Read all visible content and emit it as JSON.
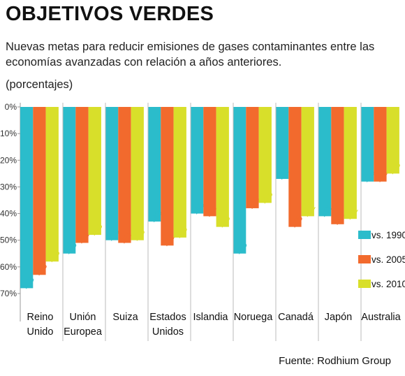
{
  "header": {
    "title": "OBJETIVOS VERDES",
    "subtitle": "Nuevas metas para reducir emisiones de gases contaminantes entre las economías avanzadas con relación a años anteriores.",
    "units": "(porcentajes)"
  },
  "footer": {
    "source": "Fuente: Rodhium Group"
  },
  "colors": {
    "vs1990": "#2bbccb",
    "vs2005": "#f26a2d",
    "vs2010": "#d8df2a"
  },
  "chart_data": {
    "type": "bar",
    "title": "OBJETIVOS VERDES",
    "ylim": [
      -70,
      0
    ],
    "yticks": [
      0,
      -10,
      -20,
      -30,
      -40,
      -50,
      -60,
      -70
    ],
    "ytick_labels": [
      "0%",
      "-10%",
      "-20%",
      "-30%",
      "-40%",
      "-50%",
      "-60%",
      "-70%"
    ],
    "grid": false,
    "legend": "right",
    "categories": [
      [
        "Reino",
        "Unido"
      ],
      [
        "Unión",
        "Europea"
      ],
      [
        "Suiza"
      ],
      [
        "Estados",
        "Unidos"
      ],
      [
        "Islandia"
      ],
      [
        "Noruega"
      ],
      [
        "Canadá"
      ],
      [
        "Japón"
      ],
      [
        "Australia"
      ]
    ],
    "series": [
      {
        "name": "vs. 1990",
        "color": "#2bbccb",
        "values": [
          -68,
          -55,
          -50,
          -43,
          -40,
          -55,
          -27,
          -41,
          -28
        ]
      },
      {
        "name": "vs. 2005",
        "color": "#f26a2d",
        "values": [
          -63,
          -51,
          -51,
          -52,
          -41,
          -38,
          -45,
          -44,
          -28
        ]
      },
      {
        "name": "vs. 2010",
        "color": "#d8df2a",
        "values": [
          -58,
          -48,
          -50,
          -49,
          -45,
          -36,
          -41,
          -42,
          -25
        ]
      }
    ]
  }
}
